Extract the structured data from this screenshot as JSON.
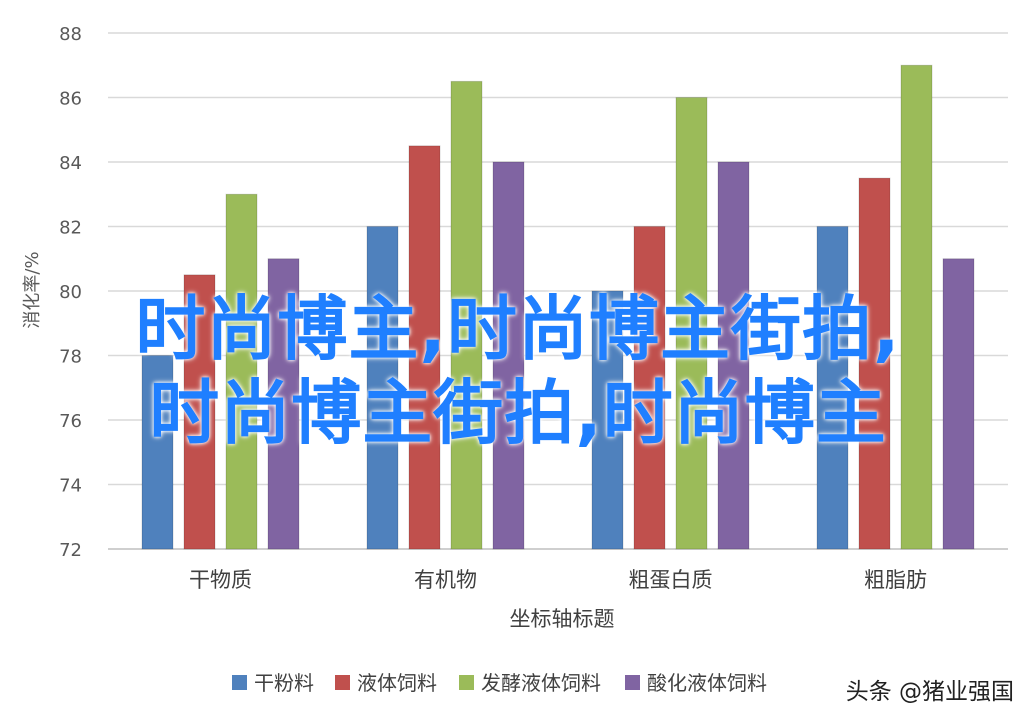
{
  "chart_data": {
    "type": "bar",
    "categories": [
      "干物质",
      "有机物",
      "粗蛋白质",
      "粗脂肪"
    ],
    "series": [
      {
        "name": "干粉料",
        "values": [
          78,
          82,
          80,
          82
        ],
        "color": "#4f81bd"
      },
      {
        "name": "液体饲料",
        "values": [
          80.5,
          84.5,
          82,
          83.5
        ],
        "color": "#c0504d"
      },
      {
        "name": "发酵液体饲料",
        "values": [
          83,
          86.5,
          86,
          87
        ],
        "color": "#9bbb59"
      },
      {
        "name": "酸化液体饲料",
        "values": [
          81,
          84,
          84,
          81
        ],
        "color": "#8064a2"
      }
    ],
    "ylim": [
      72,
      88
    ],
    "yticks": [
      72,
      74,
      76,
      78,
      80,
      82,
      84,
      86,
      88
    ],
    "ylabel": "消化率/%",
    "xlabel": "坐标轴标题",
    "grid": true,
    "legend": "bottom"
  },
  "overlay": {
    "line1": "时尚博主,时尚博主街拍,",
    "line2": "时尚博主街拍,时尚博主"
  },
  "watermark": "头条 @猪业强国"
}
